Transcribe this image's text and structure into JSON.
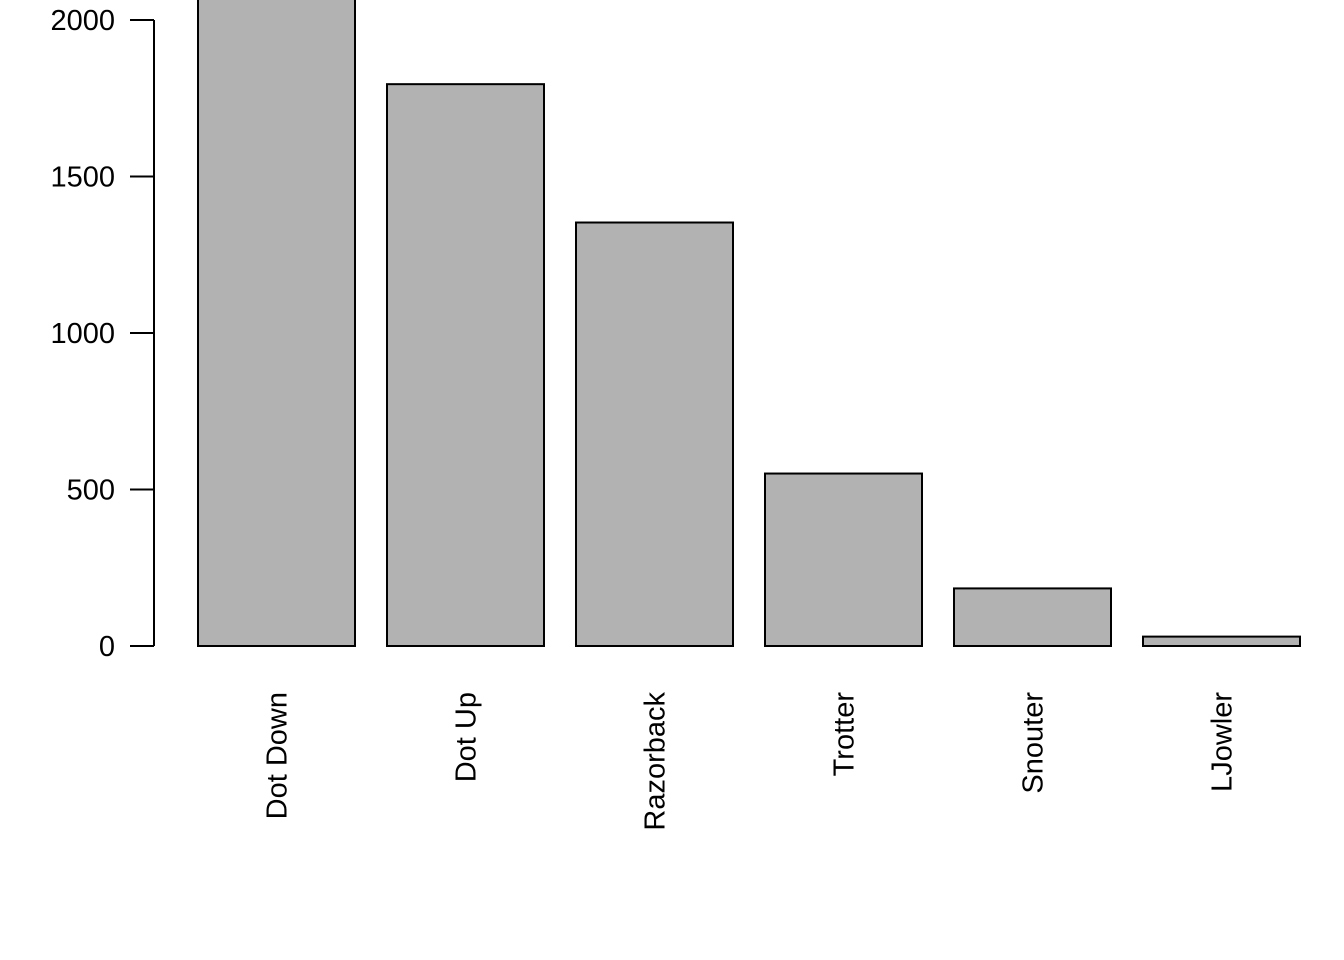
{
  "chart_data": {
    "type": "bar",
    "categories": [
      "Dot Down",
      "Dot Up",
      "Razorback",
      "Trotter",
      "Snouter",
      "LJowler"
    ],
    "values": [
      2090,
      1795,
      1353,
      551,
      184,
      30
    ],
    "title": "",
    "xlabel": "",
    "ylabel": "",
    "ylim": [
      0,
      2000
    ],
    "yticks": [
      "0",
      "500",
      "1000",
      "1500",
      "2000"
    ],
    "bar_color": "#b2b2b2",
    "grid": false,
    "category_label_orientation": "vertical"
  }
}
